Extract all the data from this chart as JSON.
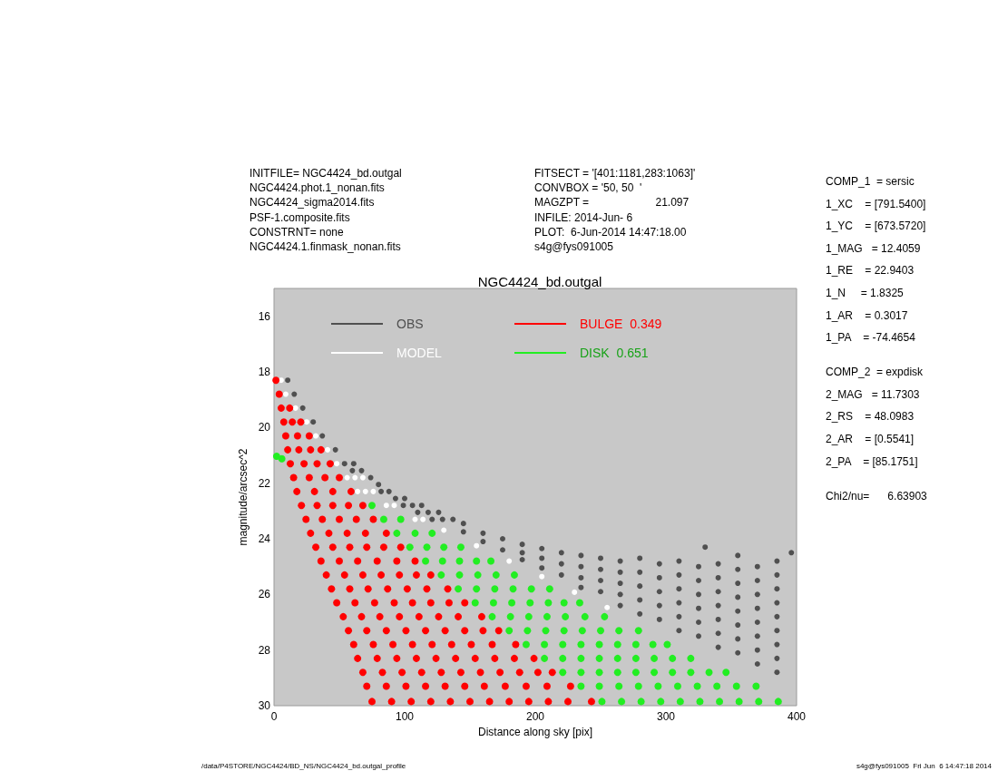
{
  "chart_data": {
    "type": "scatter",
    "title": "NGC4424_bd.outgal",
    "xlabel": "Distance along sky [pix]",
    "ylabel": "magnitude/arcsec^2",
    "xlim": [
      0,
      400
    ],
    "xticks": [
      0,
      100,
      200,
      300,
      400
    ],
    "ylim": [
      30,
      15
    ],
    "yticks": [
      16,
      18,
      20,
      22,
      24,
      26,
      28,
      30
    ],
    "legend": "top left",
    "marker": "circle",
    "annotations": [
      "INITFILE= NGC4424_bd.outgal\nNGC4424.phot.1_nonan.fits\nNGC4424_sigma2014.fits\nPSF-1.composite.fits\nCONSTRNT= none\nNGC4424.1.finmask_nonan.fits",
      "FITSECT = '[401:1181,283:1063]'\nCONVBOX = '50, 50  '\nMAGZPT =                      21.097\nINFILE: 2014-Jun- 6\nPLOT:  6-Jun-2014 14:47:18.00\ns4g@fys091005",
      "COMP_1  = sersic\n1_XC    = [791.5400]\n1_YC    = [673.5720]\n1_MAG   = 12.4059\n1_RE    = 22.9403\n1_N     = 1.8325\n1_AR    = 0.3017\n1_PA    = -74.4654",
      "COMP_2  = expdisk\n2_MAG   = 11.7303\n2_RS    = 48.0983\n2_AR    = [0.5541]\n2_PA    = [85.1751]",
      "Chi2/nu=      6.63903",
      "/data/P4STORE/NGC4424/BD_NS/NGC4424_bd.outgal_profile",
      "s4g@fys091005  Fri Jun  6 14:47:18 2014"
    ],
    "series": [
      {
        "name": "OBS",
        "color": "#505050",
        "x": [
          10.5,
          15.5,
          22,
          30,
          37,
          47,
          54,
          61,
          60,
          67,
          74,
          80,
          82,
          88,
          93,
          100,
          99,
          106,
          113,
          110,
          118,
          126,
          121,
          129,
          137,
          145,
          145,
          160,
          160,
          175,
          175,
          190,
          190,
          190,
          205,
          205,
          205,
          220,
          220,
          220,
          235,
          235,
          235,
          235,
          250,
          250,
          250,
          250,
          265,
          265,
          265,
          265,
          265,
          280,
          280,
          280,
          280,
          280,
          295,
          295,
          295,
          295,
          295,
          310,
          310,
          310,
          310,
          310,
          310,
          325,
          325,
          325,
          325,
          325,
          325,
          340,
          340,
          340,
          340,
          340,
          340,
          340,
          355,
          355,
          355,
          355,
          355,
          355,
          355,
          355,
          370,
          370,
          370,
          370,
          370,
          370,
          370,
          370,
          385,
          385,
          385,
          385,
          385,
          385,
          385,
          385,
          385,
          330,
          396
        ],
        "values": [
          18.3,
          18.8,
          19.3,
          19.8,
          20.3,
          20.8,
          21.3,
          21.3,
          21.55,
          21.55,
          21.8,
          22.05,
          22.3,
          22.3,
          22.55,
          22.55,
          22.8,
          22.8,
          22.8,
          23.05,
          23.05,
          23.05,
          23.3,
          23.3,
          23.3,
          23.45,
          23.75,
          23.8,
          24.1,
          24.0,
          24.4,
          24.2,
          24.5,
          24.75,
          24.35,
          24.7,
          25.05,
          24.5,
          24.9,
          25.3,
          24.6,
          25.0,
          25.4,
          25.75,
          24.7,
          25.1,
          25.5,
          25.9,
          24.8,
          25.2,
          25.6,
          26.0,
          26.4,
          24.7,
          25.2,
          25.7,
          26.2,
          26.7,
          24.9,
          25.4,
          25.9,
          26.4,
          26.9,
          24.8,
          25.3,
          25.8,
          26.3,
          26.8,
          27.3,
          25.0,
          25.5,
          26.0,
          26.5,
          27.0,
          27.5,
          24.9,
          25.4,
          25.9,
          26.4,
          26.9,
          27.4,
          27.9,
          24.6,
          25.1,
          25.6,
          26.1,
          26.6,
          27.1,
          27.6,
          28.1,
          25.0,
          25.5,
          26.0,
          26.5,
          27.0,
          27.5,
          28.0,
          28.5,
          24.8,
          25.3,
          25.8,
          26.3,
          26.8,
          27.3,
          27.8,
          28.3,
          28.8,
          24.3,
          24.5
        ]
      },
      {
        "name": "MODEL",
        "color": "#ffffff",
        "x": [
          5.5,
          9,
          16.5,
          25,
          32,
          41,
          48,
          56,
          62,
          68,
          64,
          70,
          76,
          86,
          92,
          108,
          114,
          130,
          155,
          180,
          205,
          230,
          255
        ],
        "values": [
          18.3,
          18.8,
          19.3,
          19.8,
          20.3,
          20.8,
          21.3,
          21.8,
          21.8,
          21.8,
          22.3,
          22.3,
          22.3,
          22.8,
          22.8,
          23.3,
          23.3,
          23.69,
          24.25,
          24.8,
          25.36,
          25.92,
          26.47
        ]
      },
      {
        "name": "BULGE  0.349",
        "color": "#ff0000",
        "x": [
          1.5,
          4,
          5.5,
          12,
          7.5,
          14,
          20.5,
          9,
          18,
          27,
          10.5,
          19,
          28,
          36,
          12.5,
          23,
          33,
          43,
          15,
          27,
          39,
          50,
          17.5,
          31,
          45,
          59,
          21,
          33,
          45,
          57,
          68,
          24.5,
          37,
          50,
          63,
          76,
          28,
          42,
          56,
          70,
          86,
          32,
          45,
          58,
          71,
          84,
          97,
          36,
          50,
          64,
          79,
          94,
          108,
          40,
          54,
          68,
          82,
          96,
          109,
          120,
          44,
          58,
          72,
          87,
          102,
          117,
          133,
          48,
          62,
          77,
          92,
          106,
          120,
          134,
          146,
          53,
          67,
          81,
          96,
          111,
          126,
          141,
          159,
          57,
          71,
          86,
          101,
          116,
          131,
          146,
          160,
          172,
          61,
          76,
          91,
          106,
          121,
          136,
          151,
          167,
          185,
          64,
          79,
          94,
          109,
          124,
          139,
          154,
          169,
          184,
          199,
          68,
          83,
          98,
          113,
          128,
          143,
          158,
          173,
          188,
          202,
          213,
          71,
          86,
          101,
          116,
          131,
          146,
          161,
          177,
          193,
          209,
          227,
          75,
          90,
          105,
          120,
          135,
          150,
          165,
          180,
          195,
          210,
          225,
          243
        ],
        "values": [
          18.3,
          18.8,
          19.3,
          19.3,
          19.8,
          19.8,
          19.8,
          20.3,
          20.3,
          20.3,
          20.8,
          20.8,
          20.8,
          20.8,
          21.3,
          21.3,
          21.3,
          21.3,
          21.8,
          21.8,
          21.8,
          21.8,
          22.3,
          22.3,
          22.3,
          22.3,
          22.8,
          22.8,
          22.8,
          22.8,
          22.8,
          23.3,
          23.3,
          23.3,
          23.3,
          23.3,
          23.8,
          23.8,
          23.8,
          23.8,
          23.8,
          24.3,
          24.3,
          24.3,
          24.3,
          24.3,
          24.3,
          24.8,
          24.8,
          24.8,
          24.8,
          24.8,
          24.8,
          25.3,
          25.3,
          25.3,
          25.3,
          25.3,
          25.3,
          25.3,
          25.8,
          25.8,
          25.8,
          25.8,
          25.8,
          25.8,
          25.8,
          26.3,
          26.3,
          26.3,
          26.3,
          26.3,
          26.3,
          26.3,
          26.3,
          26.8,
          26.8,
          26.8,
          26.8,
          26.8,
          26.8,
          26.8,
          26.8,
          27.3,
          27.3,
          27.3,
          27.3,
          27.3,
          27.3,
          27.3,
          27.3,
          27.3,
          27.8,
          27.8,
          27.8,
          27.8,
          27.8,
          27.8,
          27.8,
          27.8,
          27.8,
          28.3,
          28.3,
          28.3,
          28.3,
          28.3,
          28.3,
          28.3,
          28.3,
          28.3,
          28.3,
          28.8,
          28.8,
          28.8,
          28.8,
          28.8,
          28.8,
          28.8,
          28.8,
          28.8,
          28.8,
          28.8,
          29.3,
          29.3,
          29.3,
          29.3,
          29.3,
          29.3,
          29.3,
          29.3,
          29.3,
          29.3,
          29.3,
          29.85,
          29.85,
          29.85,
          29.85,
          29.85,
          29.85,
          29.85,
          29.85,
          29.85,
          29.85,
          29.85,
          29.85
        ]
      },
      {
        "name": "DISK  0.651",
        "color": "#22ee22",
        "x": [
          2,
          6,
          75,
          84,
          97,
          94,
          108,
          121,
          104,
          117,
          130,
          143,
          116,
          129,
          142,
          155,
          166,
          128,
          142,
          156,
          170,
          184,
          141,
          155,
          169,
          183,
          197,
          211,
          154,
          168,
          182,
          196,
          210,
          222,
          234,
          167,
          181,
          195,
          209,
          223,
          238,
          253,
          180,
          194,
          208,
          222,
          236,
          250,
          264,
          279,
          193,
          207,
          221,
          235,
          249,
          263,
          277,
          290,
          301,
          207,
          221,
          235,
          249,
          263,
          277,
          291,
          305,
          319,
          221,
          235,
          249,
          263,
          277,
          291,
          305,
          319,
          333,
          346,
          235,
          249,
          264,
          279,
          294,
          309,
          324,
          339,
          354,
          369,
          251,
          266,
          281,
          296,
          311,
          326,
          341,
          356,
          371,
          386
        ],
        "values": [
          21.03,
          21.12,
          22.8,
          23.3,
          23.3,
          23.8,
          23.8,
          23.8,
          24.3,
          24.3,
          24.3,
          24.3,
          24.8,
          24.8,
          24.8,
          24.8,
          24.8,
          25.3,
          25.3,
          25.3,
          25.3,
          25.3,
          25.8,
          25.8,
          25.8,
          25.8,
          25.8,
          25.8,
          26.3,
          26.3,
          26.3,
          26.3,
          26.3,
          26.3,
          26.3,
          26.8,
          26.8,
          26.8,
          26.8,
          26.8,
          26.8,
          26.8,
          27.3,
          27.3,
          27.3,
          27.3,
          27.3,
          27.3,
          27.3,
          27.3,
          27.8,
          27.8,
          27.8,
          27.8,
          27.8,
          27.8,
          27.8,
          27.8,
          27.8,
          28.3,
          28.3,
          28.3,
          28.3,
          28.3,
          28.3,
          28.3,
          28.3,
          28.3,
          28.8,
          28.8,
          28.8,
          28.8,
          28.8,
          28.8,
          28.8,
          28.8,
          28.8,
          28.8,
          29.3,
          29.3,
          29.3,
          29.3,
          29.3,
          29.3,
          29.3,
          29.3,
          29.3,
          29.3,
          29.85,
          29.85,
          29.85,
          29.85,
          29.85,
          29.85,
          29.85,
          29.85,
          29.85,
          29.85
        ]
      }
    ]
  }
}
